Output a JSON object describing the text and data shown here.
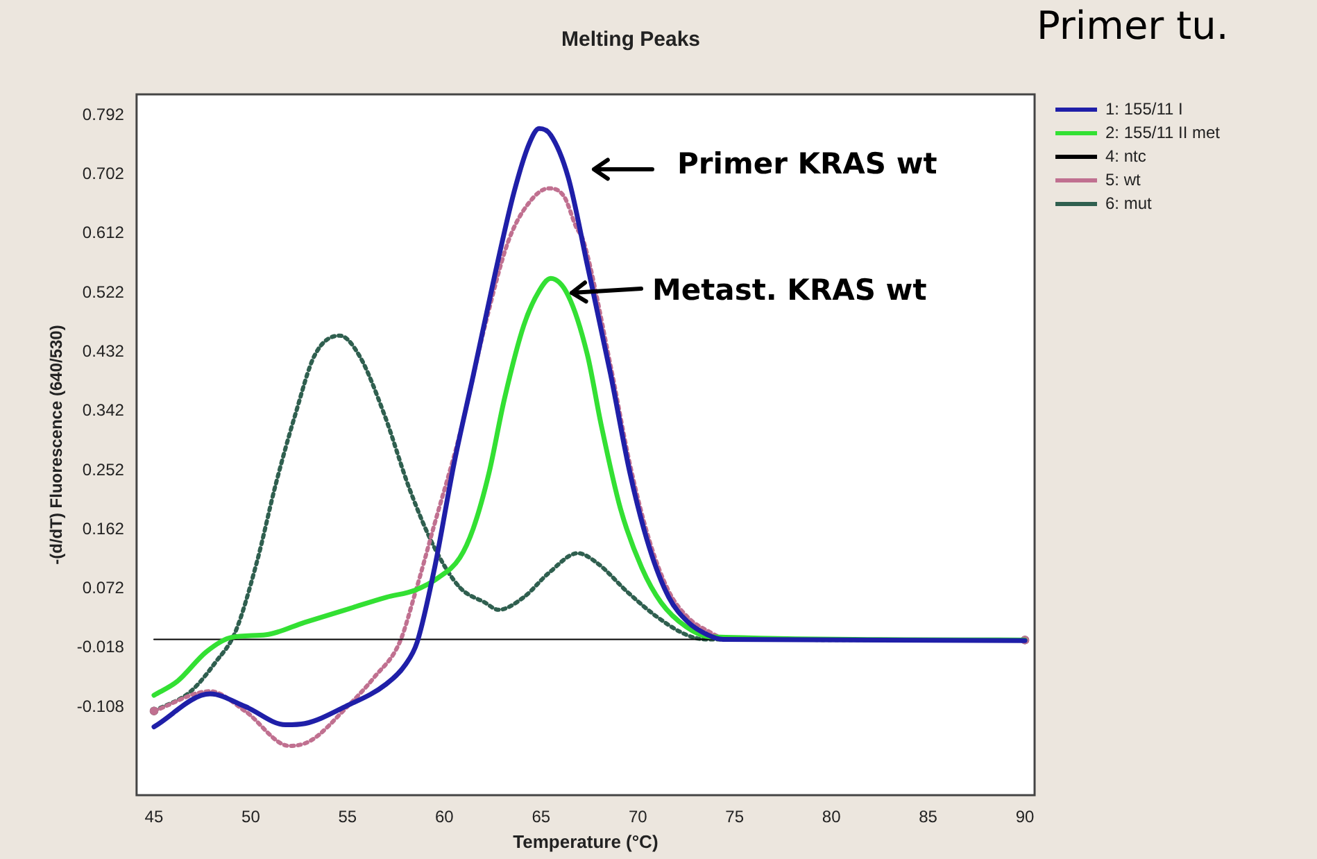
{
  "chart_data": {
    "type": "line",
    "title": "Melting Peaks",
    "xlabel": "Temperature (°C)",
    "ylabel": "-(d/dT) Fluorescence (640/530)",
    "xlim": [
      44.1,
      90.5
    ],
    "xticks": [
      45,
      50,
      55,
      60,
      65,
      70,
      75,
      80,
      85,
      90
    ],
    "ylim": [
      -0.242,
      0.824
    ],
    "yticks": [
      -0.108,
      -0.018,
      0.072,
      0.162,
      0.252,
      0.342,
      0.432,
      0.522,
      0.612,
      0.702,
      0.792
    ],
    "grid": false,
    "legend": "right",
    "marker": "none",
    "annotations": [
      "Primer KRAS wt",
      "Metast. KRAS wt",
      "Primer tu."
    ],
    "series": [
      {
        "name": "1: 155/11 I",
        "color": "#1f1fa8",
        "line_style": "solid",
        "x": [
          45,
          47.9,
          49.7,
          51.8,
          52.8,
          54.9,
          57,
          58,
          58.6,
          59.5,
          60.5,
          61.5,
          62.6,
          63.6,
          64.4,
          64.9,
          65.5,
          66.4,
          67.4,
          68.6,
          69.6,
          70.6,
          71.6,
          72.6,
          73.6,
          74.4,
          90
        ],
        "values": [
          -0.138,
          -0.088,
          -0.107,
          -0.135,
          -0.133,
          -0.107,
          -0.073,
          -0.043,
          -0.009,
          0.104,
          0.262,
          0.397,
          0.548,
          0.675,
          0.75,
          0.772,
          0.762,
          0.698,
          0.563,
          0.397,
          0.247,
          0.134,
          0.059,
          0.021,
          0.002,
          -0.005,
          -0.007
        ]
      },
      {
        "name": "2: 155/11 II met",
        "color": "#33e033",
        "line_style": "solid",
        "x": [
          45,
          46.2,
          47.7,
          49,
          50.8,
          52.8,
          54.9,
          57,
          58.5,
          59.7,
          60.8,
          61.5,
          62.3,
          63.1,
          64.1,
          64.9,
          65.5,
          66.4,
          67.4,
          68.1,
          69.1,
          70.2,
          71.2,
          72.5,
          73.7,
          90
        ],
        "values": [
          -0.09,
          -0.069,
          -0.024,
          -0.002,
          0.002,
          0.021,
          0.04,
          0.059,
          0.07,
          0.089,
          0.119,
          0.164,
          0.247,
          0.36,
          0.472,
          0.525,
          0.544,
          0.518,
          0.427,
          0.322,
          0.194,
          0.104,
          0.051,
          0.014,
          -0.001,
          -0.006
        ]
      },
      {
        "name": "4: ntc",
        "color": "#000000",
        "line_style": "solid",
        "x": [
          45,
          90
        ],
        "values": [
          -0.005,
          -0.005
        ]
      },
      {
        "name": "5: wt",
        "color": "#c07090",
        "line_style": "dotted",
        "x": [
          45,
          47.9,
          49.7,
          52,
          53.1,
          54.9,
          56.4,
          57.7,
          58.5,
          59.5,
          60.8,
          62.1,
          63.3,
          64.4,
          65.4,
          66.2,
          66.8,
          67.2,
          68.6,
          69.6,
          70.6,
          71.6,
          72.6,
          73.6,
          74.6,
          90
        ],
        "values": [
          -0.114,
          -0.084,
          -0.114,
          -0.167,
          -0.159,
          -0.11,
          -0.062,
          -0.009,
          0.066,
          0.171,
          0.307,
          0.472,
          0.6,
          0.66,
          0.681,
          0.668,
          0.623,
          0.6,
          0.41,
          0.26,
          0.145,
          0.068,
          0.028,
          0.008,
          -0.004,
          -0.006
        ]
      },
      {
        "name": "6: mut",
        "color": "#2f5f4f",
        "line_style": "dotted",
        "x": [
          45,
          46.9,
          48.2,
          49.2,
          50.3,
          51.3,
          52.3,
          53.3,
          54.6,
          55.6,
          56.9,
          58.2,
          59.5,
          60.8,
          62.1,
          62.8,
          64.1,
          65.4,
          66.9,
          67.9,
          69.5,
          71,
          72.5,
          73.5,
          90
        ],
        "values": [
          -0.114,
          -0.084,
          -0.039,
          0.006,
          0.111,
          0.232,
          0.337,
          0.427,
          0.457,
          0.427,
          0.337,
          0.224,
          0.134,
          0.074,
          0.051,
          0.04,
          0.059,
          0.096,
          0.126,
          0.111,
          0.066,
          0.029,
          0.002,
          -0.005,
          -0.006
        ]
      }
    ]
  }
}
